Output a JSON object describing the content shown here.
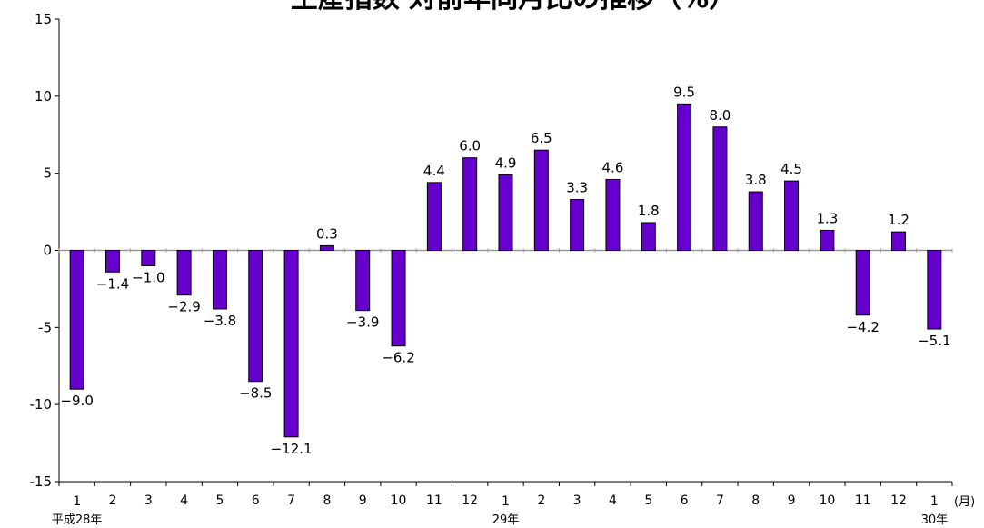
{
  "chart_data": {
    "type": "bar",
    "title": "生産指数 対前年同月比の推移（%）",
    "xlabel": "",
    "ylabel": "",
    "ylim": [
      -15,
      15
    ],
    "yticks": [
      -15,
      -10,
      -5,
      0,
      5,
      10,
      15
    ],
    "y_tick_labels": [
      "-15",
      "-10",
      "-5",
      "0",
      "5",
      "10",
      "15"
    ],
    "grid": false,
    "legend": "none",
    "x_unit_label": "(月)",
    "categories": [
      "1",
      "2",
      "3",
      "4",
      "5",
      "6",
      "7",
      "8",
      "9",
      "10",
      "11",
      "12",
      "1",
      "2",
      "3",
      "4",
      "5",
      "6",
      "7",
      "8",
      "9",
      "10",
      "11",
      "12",
      "1"
    ],
    "year_labels": [
      {
        "index": 0,
        "label": "平成28年"
      },
      {
        "index": 12,
        "label": "29年"
      },
      {
        "index": 24,
        "label": "30年"
      }
    ],
    "values": [
      -9.0,
      -1.4,
      -1.0,
      -2.9,
      -3.8,
      -8.5,
      -12.1,
      0.3,
      -3.9,
      -6.2,
      4.4,
      6.0,
      4.9,
      6.5,
      3.3,
      4.6,
      1.8,
      9.5,
      8.0,
      3.8,
      4.5,
      1.3,
      -4.2,
      1.2,
      -5.1
    ],
    "value_labels": [
      "−9.0",
      "−1.4",
      "−1.0",
      "−2.9",
      "−3.8",
      "−8.5",
      "−12.1",
      "0.3",
      "−3.9",
      "−6.2",
      "4.4",
      "6.0",
      "4.9",
      "6.5",
      "3.3",
      "4.6",
      "1.8",
      "9.5",
      "8.0",
      "3.8",
      "4.5",
      "1.3",
      "−4.2",
      "1.2",
      "−5.1"
    ],
    "colors": {
      "bar_fill": "#6600CC",
      "bar_stroke": "#000000",
      "axis": "#000000",
      "zero_line": "#999999"
    }
  }
}
